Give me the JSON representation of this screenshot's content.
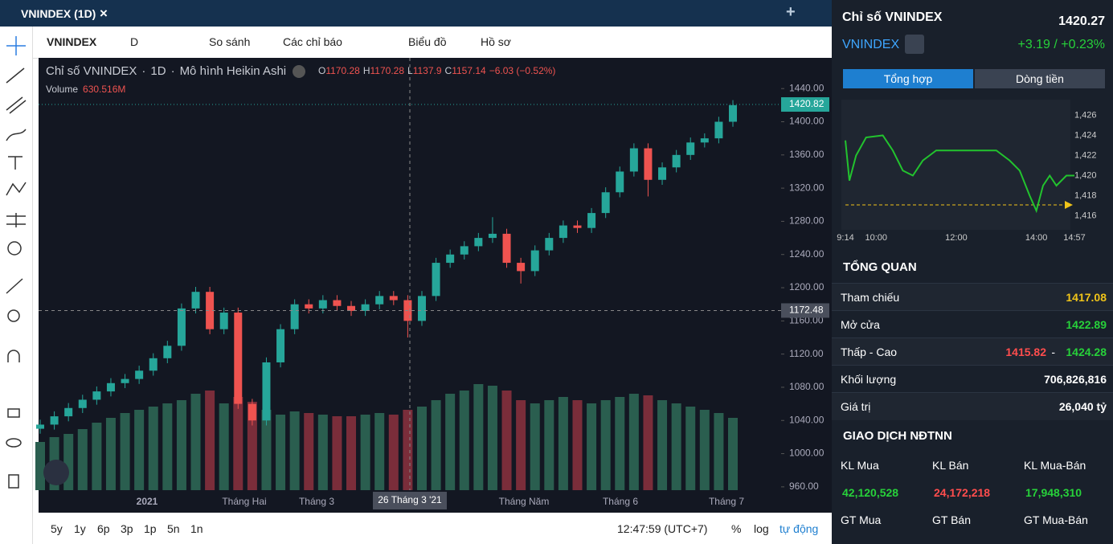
{
  "tab": {
    "title": "VNINDEX (1D)"
  },
  "toolbar": {
    "symbol": "VNINDEX",
    "interval": "D",
    "compare": "So sánh",
    "indicators": "Các chỉ báo",
    "chart_type": "Biểu đồ",
    "profile": "Hồ sơ"
  },
  "chart_data": {
    "type": "candlestick",
    "title": "Chỉ số VNINDEX",
    "interval": "1D",
    "style": "Mô hình Heikin Ashi",
    "legend": [
      {
        "label": "O",
        "value": 1170.28
      },
      {
        "label": "H",
        "value": 1170.28
      },
      {
        "label": "L",
        "value": 1137.9
      },
      {
        "label": "C",
        "value": 1157.14
      }
    ],
    "change_label": "−6.03 (−0.52%)",
    "volume_label": "Volume",
    "volume_value": "630.516M",
    "open": [
      1030,
      1035,
      1045,
      1055,
      1065,
      1075,
      1085,
      1090,
      1100,
      1115,
      1130,
      1175,
      1195,
      1150,
      1170,
      1060,
      1040,
      1110,
      1150,
      1180,
      1175,
      1185,
      1178,
      1172,
      1180,
      1190,
      1185,
      1160,
      1190,
      1230,
      1240,
      1250,
      1260,
      1265,
      1230,
      1220,
      1245,
      1260,
      1275,
      1272,
      1290,
      1315,
      1340,
      1368,
      1330,
      1345,
      1360,
      1375,
      1380,
      1400
    ],
    "high": [
      1041,
      1051,
      1061,
      1071,
      1081,
      1091,
      1096,
      1106,
      1121,
      1136,
      1181,
      1201,
      1201,
      1176,
      1176,
      1066,
      1116,
      1156,
      1186,
      1186,
      1191,
      1191,
      1184,
      1186,
      1196,
      1196,
      1191,
      1196,
      1236,
      1246,
      1256,
      1266,
      1285,
      1271,
      1236,
      1251,
      1266,
      1281,
      1281,
      1296,
      1321,
      1346,
      1374,
      1374,
      1351,
      1366,
      1381,
      1386,
      1406,
      1426
    ],
    "low": [
      1024,
      1029,
      1039,
      1049,
      1059,
      1069,
      1079,
      1084,
      1094,
      1109,
      1124,
      1169,
      1144,
      1144,
      1054,
      1034,
      1034,
      1104,
      1144,
      1169,
      1169,
      1172,
      1166,
      1166,
      1174,
      1179,
      1140,
      1154,
      1184,
      1224,
      1234,
      1244,
      1254,
      1224,
      1205,
      1214,
      1239,
      1254,
      1266,
      1266,
      1284,
      1309,
      1334,
      1310,
      1324,
      1339,
      1354,
      1369,
      1374,
      1394
    ],
    "close": [
      1035,
      1045,
      1055,
      1065,
      1075,
      1085,
      1090,
      1100,
      1115,
      1130,
      1175,
      1195,
      1150,
      1170,
      1060,
      1040,
      1110,
      1150,
      1180,
      1175,
      1185,
      1178,
      1172,
      1180,
      1190,
      1185,
      1160,
      1190,
      1230,
      1240,
      1250,
      1260,
      1265,
      1230,
      1220,
      1245,
      1260,
      1275,
      1272,
      1290,
      1315,
      1340,
      1368,
      1330,
      1345,
      1360,
      1375,
      1380,
      1400,
      1420
    ],
    "volume": [
      300,
      330,
      350,
      380,
      420,
      450,
      480,
      500,
      520,
      540,
      560,
      600,
      620,
      540,
      580,
      550,
      500,
      470,
      490,
      480,
      470,
      460,
      460,
      470,
      480,
      470,
      500,
      520,
      560,
      600,
      620,
      660,
      650,
      620,
      560,
      540,
      560,
      580,
      560,
      540,
      560,
      580,
      600,
      590,
      560,
      540,
      520,
      500,
      480,
      450
    ],
    "up_color": "#26a69a",
    "down_color": "#ef5350",
    "up_volume_color": "#2a5e4f",
    "down_volume_color": "#7a2d3a",
    "ylim": [
      956,
      1477
    ],
    "yticks": [
      {
        "value": 960,
        "label": "960.00"
      },
      {
        "value": 1000,
        "label": "1000.00"
      },
      {
        "value": 1040,
        "label": "1040.00"
      },
      {
        "value": 1080,
        "label": "1080.00"
      },
      {
        "value": 1120,
        "label": "1120.00"
      },
      {
        "value": 1160,
        "label": "1160.00"
      },
      {
        "value": 1200,
        "label": "1200.00"
      },
      {
        "value": 1240,
        "label": "1240.00"
      },
      {
        "value": 1280,
        "label": "1280.00"
      },
      {
        "value": 1320,
        "label": "1320.00"
      },
      {
        "value": 1360,
        "label": "1360.00"
      },
      {
        "value": 1400,
        "label": "1400.00"
      },
      {
        "value": 1440,
        "label": "1440.00"
      }
    ],
    "last_price": 1420.82,
    "crosshair_price": 1172.48,
    "crosshair_date": "26 Tháng 3 '21",
    "xlabels": [
      "2021",
      "Tháng Hai",
      "Tháng 3",
      "Tháng Năm",
      "Tháng 6",
      "Tháng 7"
    ]
  },
  "bottom_bar": {
    "ranges": [
      "5y",
      "1y",
      "6p",
      "3p",
      "1p",
      "5n",
      "1n"
    ],
    "clock": "12:47:59 (UTC+7)",
    "percent": "%",
    "log": "log",
    "auto": "tự động"
  },
  "panel": {
    "title": "Chỉ số VNINDEX",
    "price": "1420.27",
    "symbol": "VNINDEX",
    "change": "+3.19 / +0.23%",
    "tabs": [
      "Tổng hợp",
      "Dòng tiền"
    ],
    "intraday": {
      "type": "line",
      "color": "#22c32e",
      "x": [
        554,
        560,
        570,
        585,
        610,
        625,
        640,
        655,
        670,
        680,
        690,
        780,
        800,
        815,
        830,
        840,
        850,
        860,
        870,
        885,
        897
      ],
      "values": [
        1423.5,
        1419.5,
        1422,
        1423.8,
        1424,
        1422.5,
        1420.5,
        1420,
        1421.5,
        1422,
        1422.5,
        1422.5,
        1421.5,
        1420.5,
        1418,
        1416.5,
        1419,
        1420,
        1419,
        1420,
        1420
      ],
      "xlim": [
        554,
        897
      ],
      "xticks": [
        {
          "value": 554,
          "label": "9:14"
        },
        {
          "value": 600,
          "label": "10:00"
        },
        {
          "value": 720,
          "label": "12:00"
        },
        {
          "value": 840,
          "label": "14:00"
        },
        {
          "value": 897,
          "label": "14:57"
        }
      ],
      "ylim": [
        1415,
        1427
      ],
      "yticks": [
        {
          "value": 1416,
          "label": "1,416"
        },
        {
          "value": 1418,
          "label": "1,418"
        },
        {
          "value": 1420,
          "label": "1,420"
        },
        {
          "value": 1422,
          "label": "1,422"
        },
        {
          "value": 1424,
          "label": "1,424"
        },
        {
          "value": 1426,
          "label": "1,426"
        }
      ],
      "reference": 1417.08
    },
    "overview": {
      "heading": "TỔNG QUAN",
      "rows": [
        [
          "Tham chiếu",
          "1417.08"
        ],
        [
          "Mở cửa",
          "1422.89"
        ],
        [
          "Thấp - Cao",
          "1415.82",
          "1424.28"
        ],
        [
          "Khối lượng",
          "706,826,816"
        ],
        [
          "Giá trị",
          "26,040 tỷ"
        ]
      ]
    },
    "foreign": {
      "heading": "GIAO DỊCH NĐTNN",
      "headers1": [
        "KL Mua",
        "KL Bán",
        "KL Mua-Bán"
      ],
      "values1": [
        "42,120,528",
        "24,172,218",
        "17,948,310"
      ],
      "headers2": [
        "GT Mua",
        "GT Bán",
        "GT Mua-Bán"
      ]
    }
  }
}
